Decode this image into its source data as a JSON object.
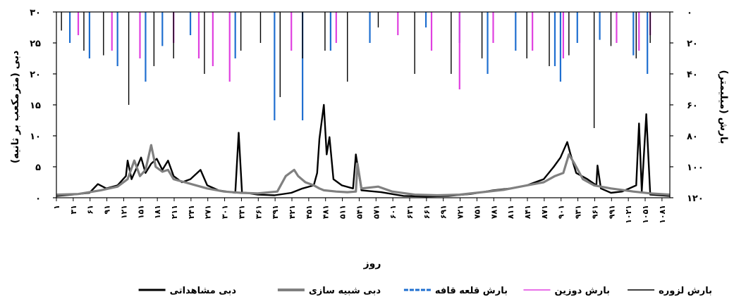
{
  "chart_data": {
    "type": "line",
    "xlabel": "روز",
    "ylabel_left": "دبی (مترمکعب بر ثانیه)",
    "ylabel_right": "بارش (میلیمتر)",
    "left_ticks": [
      "۰",
      "۵",
      "۱۰",
      "۱۵",
      "۲۰",
      "۲۵",
      "۳۰"
    ],
    "left_values": [
      0,
      5,
      10,
      15,
      20,
      25,
      30
    ],
    "right_ticks": [
      "۰",
      "۲۰",
      "۴۰",
      "۶۰",
      "۸۰",
      "۱۰۰",
      "۱۲۰"
    ],
    "right_values": [
      0,
      20,
      40,
      60,
      80,
      100,
      120
    ],
    "ylim_left": [
      0,
      30
    ],
    "ylim_right": [
      120,
      0
    ],
    "xlim": [
      1,
      1095
    ],
    "x_ticks": [
      "۱",
      "۳۱",
      "۶۱",
      "۹۱",
      "۱۲۱",
      "۱۵۱",
      "۱۸۱",
      "۲۱۱",
      "۲۴۱",
      "۲۷۱",
      "۳۰۱",
      "۳۳۱",
      "۳۶۱",
      "۳۹۱",
      "۴۲۱",
      "۴۵۱",
      "۴۸۱",
      "۵۱۱",
      "۵۴۱",
      "۵۷۱",
      "۶۰۱",
      "۶۳۱",
      "۶۶۱",
      "۶۹۱",
      "۷۲۱",
      "۷۵۱",
      "۷۸۱",
      "۸۱۱",
      "۸۴۱",
      "۸۷۱",
      "۹۰۱",
      "۹۳۱",
      "۹۶۱",
      "۹۹۱",
      "۱۰۲۱",
      "۱۰۵۱",
      "۱۰۸۱"
    ],
    "x_tick_values": [
      1,
      31,
      61,
      91,
      121,
      151,
      181,
      211,
      241,
      271,
      301,
      331,
      361,
      391,
      421,
      451,
      481,
      511,
      541,
      571,
      601,
      631,
      661,
      691,
      721,
      751,
      781,
      811,
      841,
      871,
      901,
      931,
      961,
      991,
      1021,
      1051,
      1081
    ],
    "legend_position": "bottom",
    "series": [
      {
        "name": "دبی مشاهداتی",
        "color": "#000000",
        "axis": "left",
        "points": [
          [
            1,
            0.3
          ],
          [
            30,
            0.5
          ],
          [
            60,
            0.8
          ],
          [
            75,
            2.2
          ],
          [
            90,
            1.5
          ],
          [
            110,
            2.0
          ],
          [
            125,
            3.5
          ],
          [
            128,
            6.0
          ],
          [
            135,
            3.0
          ],
          [
            145,
            5.0
          ],
          [
            152,
            6.5
          ],
          [
            160,
            4.0
          ],
          [
            170,
            5.5
          ],
          [
            180,
            6.3
          ],
          [
            190,
            4.5
          ],
          [
            200,
            6.0
          ],
          [
            210,
            3.5
          ],
          [
            225,
            2.5
          ],
          [
            240,
            3.0
          ],
          [
            258,
            4.5
          ],
          [
            270,
            2.0
          ],
          [
            290,
            1.2
          ],
          [
            320,
            0.8
          ],
          [
            326,
            10.5
          ],
          [
            332,
            0.9
          ],
          [
            360,
            0.5
          ],
          [
            390,
            0.4
          ],
          [
            420,
            0.8
          ],
          [
            440,
            1.5
          ],
          [
            460,
            2.0
          ],
          [
            466,
            4.0
          ],
          [
            470,
            9.5
          ],
          [
            478,
            15.0
          ],
          [
            483,
            7.0
          ],
          [
            488,
            9.8
          ],
          [
            495,
            3.0
          ],
          [
            510,
            2.0
          ],
          [
            530,
            1.5
          ],
          [
            535,
            7.0
          ],
          [
            545,
            1.2
          ],
          [
            580,
            0.9
          ],
          [
            620,
            0.3
          ],
          [
            660,
            0.2
          ],
          [
            700,
            0.3
          ],
          [
            740,
            0.6
          ],
          [
            780,
            1.2
          ],
          [
            810,
            1.5
          ],
          [
            840,
            2.0
          ],
          [
            870,
            3.0
          ],
          [
            888,
            5.0
          ],
          [
            900,
            6.5
          ],
          [
            912,
            9.0
          ],
          [
            918,
            7.0
          ],
          [
            928,
            4.0
          ],
          [
            948,
            3.0
          ],
          [
            964,
            2.0
          ],
          [
            966,
            5.2
          ],
          [
            972,
            1.5
          ],
          [
            990,
            0.8
          ],
          [
            1010,
            1.0
          ],
          [
            1035,
            2.0
          ],
          [
            1040,
            12.0
          ],
          [
            1045,
            1.0
          ],
          [
            1053,
            13.5
          ],
          [
            1060,
            0.5
          ],
          [
            1095,
            0.3
          ]
        ]
      },
      {
        "name": "دبی شبیه سازی",
        "color": "#808080",
        "axis": "left",
        "points": [
          [
            1,
            0.5
          ],
          [
            40,
            0.6
          ],
          [
            80,
            1.2
          ],
          [
            110,
            1.8
          ],
          [
            128,
            3.0
          ],
          [
            140,
            6.0
          ],
          [
            150,
            3.5
          ],
          [
            160,
            4.5
          ],
          [
            170,
            8.5
          ],
          [
            178,
            5.0
          ],
          [
            190,
            4.2
          ],
          [
            200,
            4.5
          ],
          [
            210,
            3.0
          ],
          [
            230,
            2.5
          ],
          [
            250,
            2.0
          ],
          [
            270,
            1.5
          ],
          [
            300,
            1.0
          ],
          [
            330,
            0.8
          ],
          [
            360,
            0.7
          ],
          [
            395,
            1.0
          ],
          [
            410,
            3.5
          ],
          [
            425,
            4.5
          ],
          [
            432,
            3.5
          ],
          [
            445,
            2.5
          ],
          [
            460,
            2.0
          ],
          [
            470,
            1.5
          ],
          [
            478,
            1.2
          ],
          [
            500,
            1.0
          ],
          [
            520,
            0.9
          ],
          [
            535,
            1.0
          ],
          [
            538,
            5.5
          ],
          [
            545,
            1.5
          ],
          [
            575,
            1.8
          ],
          [
            600,
            1.0
          ],
          [
            640,
            0.5
          ],
          [
            680,
            0.4
          ],
          [
            720,
            0.5
          ],
          [
            760,
            0.9
          ],
          [
            800,
            1.3
          ],
          [
            840,
            2.0
          ],
          [
            870,
            2.5
          ],
          [
            890,
            3.5
          ],
          [
            905,
            4.0
          ],
          [
            915,
            7.0
          ],
          [
            925,
            5.5
          ],
          [
            940,
            3.0
          ],
          [
            960,
            2.0
          ],
          [
            990,
            1.5
          ],
          [
            1030,
            1.0
          ],
          [
            1060,
            0.7
          ],
          [
            1095,
            0.5
          ]
        ]
      },
      {
        "name": "بارش قلعه قافه",
        "color": "#1f6fd0",
        "axis": "right",
        "points": [
          [
            25,
            20
          ],
          [
            60,
            30
          ],
          [
            110,
            35
          ],
          [
            160,
            45
          ],
          [
            190,
            22
          ],
          [
            240,
            15
          ],
          [
            320,
            30
          ],
          [
            390,
            70
          ],
          [
            440,
            70
          ],
          [
            490,
            25
          ],
          [
            560,
            20
          ],
          [
            660,
            10
          ],
          [
            720,
            20
          ],
          [
            770,
            40
          ],
          [
            820,
            25
          ],
          [
            890,
            35
          ],
          [
            900,
            45
          ],
          [
            930,
            20
          ],
          [
            970,
            18
          ],
          [
            1030,
            28
          ],
          [
            1055,
            40
          ]
        ]
      },
      {
        "name": "بارش دوزین",
        "color": "#e040e0",
        "axis": "right",
        "points": [
          [
            40,
            15
          ],
          [
            100,
            25
          ],
          [
            150,
            30
          ],
          [
            210,
            20
          ],
          [
            255,
            30
          ],
          [
            280,
            35
          ],
          [
            310,
            45
          ],
          [
            420,
            25
          ],
          [
            500,
            20
          ],
          [
            610,
            15
          ],
          [
            670,
            25
          ],
          [
            720,
            50
          ],
          [
            780,
            20
          ],
          [
            850,
            25
          ],
          [
            905,
            30
          ],
          [
            1000,
            20
          ],
          [
            1040,
            25
          ],
          [
            1060,
            15
          ]
        ]
      },
      {
        "name": "بارش لزوره",
        "color": "#000000",
        "axis": "right",
        "points": [
          [
            10,
            12
          ],
          [
            50,
            25
          ],
          [
            85,
            28
          ],
          [
            130,
            60
          ],
          [
            175,
            35
          ],
          [
            210,
            30
          ],
          [
            265,
            40
          ],
          [
            330,
            25
          ],
          [
            365,
            20
          ],
          [
            400,
            55
          ],
          [
            440,
            30
          ],
          [
            480,
            25
          ],
          [
            520,
            45
          ],
          [
            575,
            10
          ],
          [
            640,
            40
          ],
          [
            705,
            40
          ],
          [
            760,
            30
          ],
          [
            840,
            30
          ],
          [
            880,
            35
          ],
          [
            915,
            28
          ],
          [
            960,
            75
          ],
          [
            990,
            22
          ],
          [
            1035,
            30
          ],
          [
            1060,
            20
          ]
        ]
      }
    ]
  }
}
